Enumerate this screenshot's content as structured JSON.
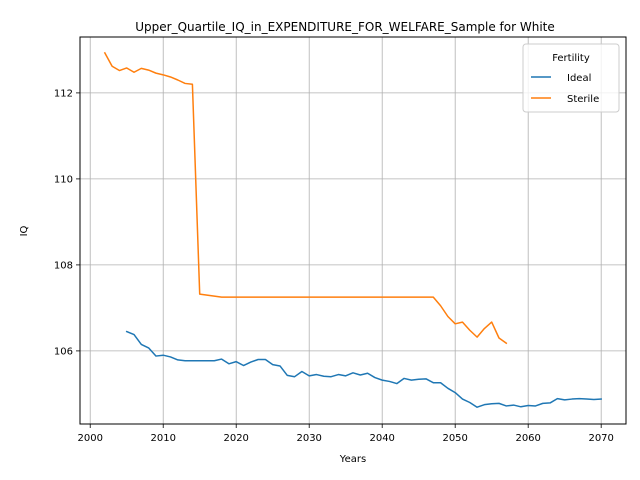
{
  "chart_data": {
    "type": "line",
    "title": "Upper_Quartile_IQ_in_EXPENDITURE_FOR_WELFARE_Sample for White",
    "xlabel": "Years",
    "ylabel": "IQ",
    "xlim": [
      1998.6,
      2073.4
    ],
    "ylim": [
      104.3,
      113.3
    ],
    "xticks": [
      2000,
      2010,
      2020,
      2030,
      2040,
      2050,
      2060,
      2070
    ],
    "yticks": [
      106,
      108,
      110,
      112
    ],
    "grid": true,
    "legend": {
      "title": "Fertility",
      "location": "upper right"
    },
    "series": [
      {
        "name": "Ideal",
        "color": "#1f77b4",
        "x": [
          2005,
          2006,
          2007,
          2008,
          2009,
          2010,
          2011,
          2012,
          2013,
          2014,
          2015,
          2016,
          2017,
          2018,
          2019,
          2020,
          2021,
          2022,
          2023,
          2024,
          2025,
          2026,
          2027,
          2028,
          2029,
          2030,
          2031,
          2032,
          2033,
          2034,
          2035,
          2036,
          2037,
          2038,
          2039,
          2040,
          2041,
          2042,
          2043,
          2044,
          2045,
          2046,
          2047,
          2048,
          2049,
          2050,
          2051,
          2052,
          2053,
          2054,
          2055,
          2056,
          2057,
          2058,
          2059,
          2060,
          2061,
          2062,
          2063,
          2064,
          2065,
          2066,
          2067,
          2068,
          2069,
          2070
        ],
        "y": [
          106.45,
          106.38,
          106.15,
          106.07,
          105.88,
          105.9,
          105.86,
          105.79,
          105.77,
          105.77,
          105.77,
          105.77,
          105.77,
          105.81,
          105.7,
          105.75,
          105.66,
          105.74,
          105.8,
          105.8,
          105.68,
          105.65,
          105.43,
          105.4,
          105.52,
          105.42,
          105.45,
          105.41,
          105.4,
          105.45,
          105.42,
          105.49,
          105.44,
          105.48,
          105.38,
          105.32,
          105.29,
          105.24,
          105.36,
          105.32,
          105.34,
          105.35,
          105.26,
          105.26,
          105.13,
          105.03,
          104.88,
          104.8,
          104.69,
          104.75,
          104.77,
          104.78,
          104.72,
          104.74,
          104.7,
          104.73,
          104.72,
          104.78,
          104.79,
          104.89,
          104.86,
          104.88,
          104.89,
          104.88,
          104.87,
          104.88
        ]
      },
      {
        "name": "Sterile",
        "color": "#ff7f0e",
        "x": [
          2002,
          2003,
          2004,
          2005,
          2006,
          2007,
          2008,
          2009,
          2010,
          2011,
          2012,
          2013,
          2014,
          2015,
          2018,
          2047,
          2048,
          2049,
          2050,
          2051,
          2052,
          2053,
          2054,
          2055,
          2056,
          2057
        ],
        "y": [
          112.93,
          112.62,
          112.52,
          112.58,
          112.48,
          112.57,
          112.53,
          112.46,
          112.42,
          112.37,
          112.3,
          112.22,
          112.2,
          107.32,
          107.25,
          107.25,
          107.05,
          106.8,
          106.63,
          106.67,
          106.48,
          106.32,
          106.52,
          106.67,
          106.3,
          106.18
        ]
      }
    ]
  }
}
